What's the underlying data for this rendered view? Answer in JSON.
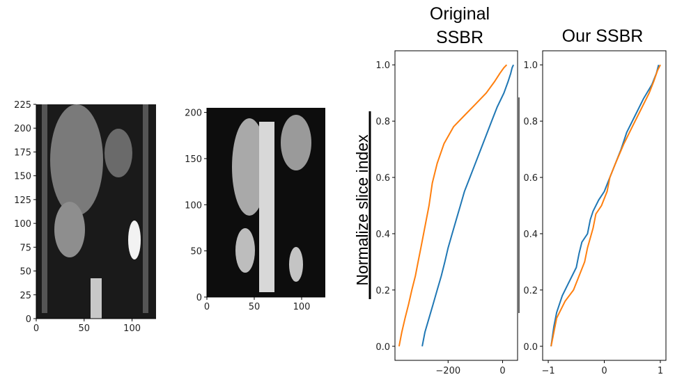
{
  "chart_data": [
    {
      "type": "image",
      "description_free": true,
      "x_ticks": [
        "0",
        "50",
        "100"
      ],
      "y_ticks": [
        "0",
        "25",
        "50",
        "75",
        "100",
        "125",
        "150",
        "175",
        "200",
        "225"
      ],
      "xlim": [
        0,
        125
      ],
      "ylim": [
        0,
        225
      ]
    },
    {
      "type": "image",
      "x_ticks": [
        "0",
        "50",
        "100"
      ],
      "y_ticks": [
        "0",
        "50",
        "100",
        "150",
        "200"
      ],
      "xlim": [
        0,
        125
      ],
      "ylim": [
        0,
        205
      ]
    },
    {
      "type": "line",
      "title_line1": "Original",
      "title_line2": "SSBR",
      "ylabel": "Normalize slice index",
      "x_ticks": [
        "−200",
        "0"
      ],
      "y_ticks": [
        "0.0",
        "0.2",
        "0.4",
        "0.6",
        "0.8",
        "1.0"
      ],
      "xlim": [
        -395,
        55
      ],
      "ylim": [
        -0.05,
        1.05
      ],
      "series": [
        {
          "color": "#1f77b4",
          "x": [
            -295,
            -285,
            -270,
            -255,
            -240,
            -225,
            -212,
            -200,
            -185,
            -170,
            -155,
            -140,
            -120,
            -100,
            -80,
            -60,
            -40,
            -20,
            5,
            20,
            30,
            35,
            40
          ],
          "y": [
            0.0,
            0.05,
            0.1,
            0.15,
            0.2,
            0.25,
            0.3,
            0.35,
            0.4,
            0.45,
            0.5,
            0.55,
            0.6,
            0.65,
            0.7,
            0.75,
            0.8,
            0.85,
            0.9,
            0.94,
            0.97,
            0.99,
            1.0
          ]
        },
        {
          "color": "#ff7f0e",
          "x": [
            -380,
            -370,
            -358,
            -345,
            -333,
            -320,
            -310,
            -300,
            -290,
            -280,
            -270,
            -258,
            -240,
            -215,
            -180,
            -140,
            -100,
            -60,
            -30,
            -10,
            5,
            15
          ],
          "y": [
            0.0,
            0.05,
            0.1,
            0.15,
            0.2,
            0.25,
            0.3,
            0.35,
            0.4,
            0.45,
            0.5,
            0.58,
            0.65,
            0.72,
            0.78,
            0.82,
            0.86,
            0.9,
            0.94,
            0.97,
            0.99,
            1.0
          ]
        }
      ]
    },
    {
      "type": "line",
      "title": "Our SSBR",
      "x_ticks": [
        "−1",
        "0",
        "1"
      ],
      "y_ticks": [
        "0.0",
        "0.2",
        "0.4",
        "0.6",
        "0.8",
        "1.0"
      ],
      "xlim": [
        -1.1,
        1.1
      ],
      "ylim": [
        -0.05,
        1.05
      ],
      "series": [
        {
          "color": "#1f77b4",
          "x": [
            -0.95,
            -0.9,
            -0.85,
            -0.75,
            -0.65,
            -0.5,
            -0.45,
            -0.4,
            -0.3,
            -0.25,
            -0.2,
            -0.1,
            0.0,
            0.1,
            0.2,
            0.3,
            0.4,
            0.55,
            0.7,
            0.85,
            0.93,
            0.97
          ],
          "y": [
            0.0,
            0.07,
            0.12,
            0.18,
            0.22,
            0.28,
            0.33,
            0.37,
            0.4,
            0.45,
            0.48,
            0.52,
            0.55,
            0.6,
            0.65,
            0.7,
            0.76,
            0.82,
            0.88,
            0.93,
            0.97,
            1.0
          ]
        },
        {
          "color": "#ff7f0e",
          "x": [
            -0.95,
            -0.9,
            -0.85,
            -0.7,
            -0.55,
            -0.45,
            -0.35,
            -0.3,
            -0.2,
            -0.15,
            -0.05,
            0.05,
            0.1,
            0.2,
            0.35,
            0.5,
            0.65,
            0.8,
            0.88,
            0.95,
            1.0
          ],
          "y": [
            0.0,
            0.05,
            0.1,
            0.16,
            0.2,
            0.25,
            0.3,
            0.35,
            0.42,
            0.47,
            0.5,
            0.55,
            0.6,
            0.65,
            0.72,
            0.78,
            0.84,
            0.9,
            0.94,
            0.98,
            1.0
          ]
        }
      ]
    }
  ]
}
